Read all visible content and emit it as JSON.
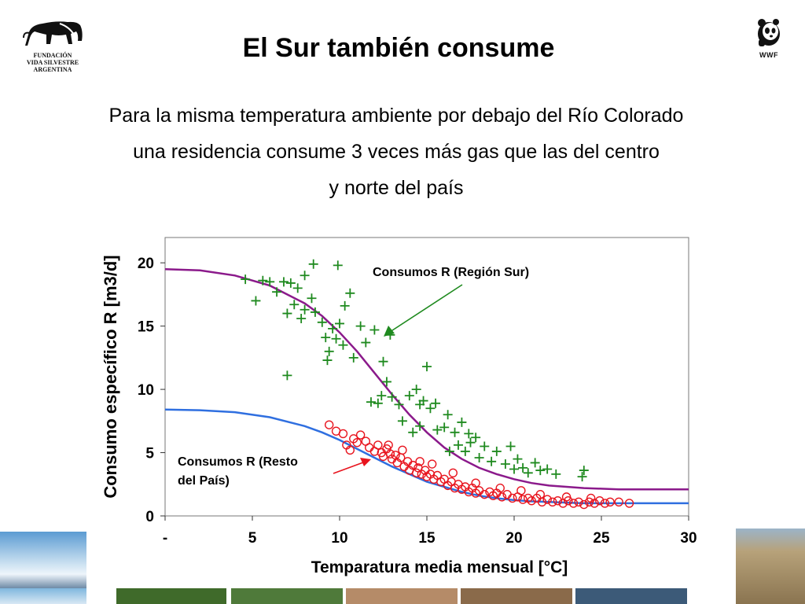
{
  "slide": {
    "title": "El Sur también consume",
    "subtitle_lines": [
      "Para la misma temperatura ambiente por debajo del Río Colorado",
      "una residencia consume 3 veces más gas que las del centro",
      "y norte del país"
    ]
  },
  "logos": {
    "fvsa_lines": [
      "FUNDACIÓN",
      "VIDA SILVESTRE",
      "ARGENTINA"
    ],
    "wwf_label": "WWF"
  },
  "colors": {
    "sur_points": "#1f8a1f",
    "resto_points": "#e8141e",
    "sur_curve": "#8b1a8b",
    "resto_curve": "#2f6fe0",
    "annotation_sur": "#1f8a1f",
    "annotation_resto": "#e8141e"
  },
  "chart_data": {
    "type": "scatter",
    "xlabel": "Temparatura media  mensual [°C]",
    "ylabel": "Consumo específico R  [m3/d]",
    "xlim": [
      0,
      30
    ],
    "ylim": [
      0,
      22
    ],
    "x_ticks": [
      {
        "value": 0,
        "label": "-"
      },
      {
        "value": 5,
        "label": "5"
      },
      {
        "value": 10,
        "label": "10"
      },
      {
        "value": 15,
        "label": "15"
      },
      {
        "value": 20,
        "label": "20"
      },
      {
        "value": 25,
        "label": "25"
      },
      {
        "value": 30,
        "label": "30"
      }
    ],
    "y_ticks": [
      {
        "value": 0,
        "label": "0"
      },
      {
        "value": 5,
        "label": "5"
      },
      {
        "value": 10,
        "label": "10"
      },
      {
        "value": 15,
        "label": "15"
      },
      {
        "value": 20,
        "label": "20"
      }
    ],
    "annotations": [
      {
        "text": "Consumos  R  (Región Sur)",
        "target": "sur"
      },
      {
        "text_lines": [
          "Consumos R  (Resto",
          "del País)"
        ],
        "target": "resto"
      }
    ],
    "series": [
      {
        "name": "Consumos  R  (Región Sur)",
        "marker": "plus",
        "points": [
          [
            4.6,
            18.7
          ],
          [
            5.2,
            17.0
          ],
          [
            5.6,
            18.6
          ],
          [
            6.0,
            18.5
          ],
          [
            6.4,
            17.7
          ],
          [
            6.8,
            18.5
          ],
          [
            7.0,
            16.0
          ],
          [
            7.2,
            18.4
          ],
          [
            7.4,
            16.7
          ],
          [
            7.6,
            18.0
          ],
          [
            7.8,
            15.6
          ],
          [
            8.0,
            16.3
          ],
          [
            8.4,
            17.2
          ],
          [
            8.5,
            19.9
          ],
          [
            8.0,
            19.0
          ],
          [
            8.6,
            16.1
          ],
          [
            9.0,
            15.3
          ],
          [
            9.2,
            14.1
          ],
          [
            9.4,
            13.0
          ],
          [
            9.6,
            14.8
          ],
          [
            9.8,
            14.0
          ],
          [
            9.9,
            19.8
          ],
          [
            10.0,
            15.2
          ],
          [
            10.2,
            13.5
          ],
          [
            10.3,
            16.6
          ],
          [
            10.6,
            17.6
          ],
          [
            10.8,
            12.5
          ],
          [
            11.2,
            15.0
          ],
          [
            11.5,
            13.7
          ],
          [
            7.0,
            11.1
          ],
          [
            9.3,
            12.3
          ],
          [
            12.0,
            14.7
          ],
          [
            12.5,
            12.2
          ],
          [
            12.9,
            14.3
          ],
          [
            12.7,
            10.6
          ],
          [
            11.8,
            9.0
          ],
          [
            12.2,
            8.9
          ],
          [
            12.4,
            9.5
          ],
          [
            13.0,
            9.4
          ],
          [
            13.4,
            8.8
          ],
          [
            13.6,
            7.5
          ],
          [
            14.0,
            9.5
          ],
          [
            14.4,
            10.0
          ],
          [
            14.6,
            8.8
          ],
          [
            14.8,
            9.1
          ],
          [
            15.0,
            11.8
          ],
          [
            15.2,
            8.5
          ],
          [
            15.5,
            8.9
          ],
          [
            14.2,
            6.6
          ],
          [
            14.6,
            7.1
          ],
          [
            15.6,
            6.8
          ],
          [
            16.0,
            7.0
          ],
          [
            16.3,
            5.1
          ],
          [
            16.6,
            6.6
          ],
          [
            16.8,
            5.6
          ],
          [
            17.2,
            5.1
          ],
          [
            17.4,
            6.5
          ],
          [
            17.8,
            6.2
          ],
          [
            18.0,
            4.6
          ],
          [
            18.3,
            5.5
          ],
          [
            18.7,
            4.3
          ],
          [
            19.0,
            5.1
          ],
          [
            19.5,
            4.1
          ],
          [
            19.8,
            5.5
          ],
          [
            20.0,
            3.7
          ],
          [
            20.2,
            4.5
          ],
          [
            20.5,
            3.8
          ],
          [
            20.8,
            3.4
          ],
          [
            21.2,
            4.2
          ],
          [
            21.5,
            3.6
          ],
          [
            21.9,
            3.7
          ],
          [
            22.4,
            3.3
          ],
          [
            23.9,
            3.1
          ],
          [
            24.0,
            3.6
          ],
          [
            16.2,
            8.0
          ],
          [
            17.0,
            7.4
          ],
          [
            17.5,
            5.8
          ]
        ]
      },
      {
        "name": "Consumos R  (Resto del País)",
        "marker": "circle",
        "points": [
          [
            9.4,
            7.2
          ],
          [
            9.8,
            6.7
          ],
          [
            10.2,
            6.5
          ],
          [
            10.4,
            5.6
          ],
          [
            10.6,
            5.2
          ],
          [
            10.8,
            6.1
          ],
          [
            11.0,
            5.8
          ],
          [
            11.2,
            6.4
          ],
          [
            11.5,
            5.9
          ],
          [
            11.7,
            5.4
          ],
          [
            12.0,
            5.1
          ],
          [
            12.2,
            5.6
          ],
          [
            12.4,
            5.0
          ],
          [
            12.5,
            4.7
          ],
          [
            12.7,
            5.3
          ],
          [
            12.9,
            4.9
          ],
          [
            13.0,
            4.5
          ],
          [
            13.2,
            4.8
          ],
          [
            13.3,
            4.2
          ],
          [
            13.5,
            4.6
          ],
          [
            13.7,
            3.9
          ],
          [
            13.9,
            4.3
          ],
          [
            14.0,
            3.6
          ],
          [
            14.2,
            4.0
          ],
          [
            14.4,
            3.4
          ],
          [
            14.5,
            3.8
          ],
          [
            14.7,
            3.3
          ],
          [
            14.9,
            3.6
          ],
          [
            15.0,
            3.1
          ],
          [
            15.2,
            3.3
          ],
          [
            15.4,
            2.9
          ],
          [
            15.6,
            3.2
          ],
          [
            15.8,
            2.7
          ],
          [
            16.0,
            2.9
          ],
          [
            16.2,
            2.4
          ],
          [
            16.4,
            2.7
          ],
          [
            16.6,
            2.2
          ],
          [
            16.8,
            2.5
          ],
          [
            17.0,
            2.1
          ],
          [
            17.2,
            2.3
          ],
          [
            17.4,
            1.9
          ],
          [
            17.6,
            2.2
          ],
          [
            17.8,
            1.8
          ],
          [
            18.0,
            2.0
          ],
          [
            18.3,
            1.7
          ],
          [
            18.6,
            1.9
          ],
          [
            18.8,
            1.6
          ],
          [
            19.0,
            1.8
          ],
          [
            19.3,
            1.5
          ],
          [
            19.6,
            1.7
          ],
          [
            19.9,
            1.4
          ],
          [
            20.2,
            1.5
          ],
          [
            20.5,
            1.3
          ],
          [
            20.8,
            1.4
          ],
          [
            21.0,
            1.2
          ],
          [
            21.3,
            1.4
          ],
          [
            21.6,
            1.1
          ],
          [
            21.9,
            1.3
          ],
          [
            22.2,
            1.1
          ],
          [
            22.5,
            1.2
          ],
          [
            22.8,
            1.0
          ],
          [
            23.1,
            1.2
          ],
          [
            23.4,
            1.0
          ],
          [
            23.7,
            1.1
          ],
          [
            24.0,
            0.9
          ],
          [
            24.3,
            1.1
          ],
          [
            24.6,
            1.0
          ],
          [
            24.9,
            1.2
          ],
          [
            25.2,
            1.0
          ],
          [
            25.5,
            1.1
          ],
          [
            26.0,
            1.1
          ],
          [
            26.6,
            1.0
          ],
          [
            12.8,
            5.6
          ],
          [
            13.6,
            5.2
          ],
          [
            14.6,
            4.3
          ],
          [
            15.3,
            4.1
          ],
          [
            16.5,
            3.4
          ],
          [
            17.8,
            2.6
          ],
          [
            19.2,
            2.2
          ],
          [
            20.4,
            2.0
          ],
          [
            21.5,
            1.7
          ],
          [
            23.0,
            1.5
          ],
          [
            24.4,
            1.4
          ]
        ]
      }
    ],
    "curves": [
      {
        "name": "fit-sur",
        "points": [
          [
            0,
            19.5
          ],
          [
            2,
            19.4
          ],
          [
            4,
            19.0
          ],
          [
            6,
            18.2
          ],
          [
            8,
            16.8
          ],
          [
            9,
            15.8
          ],
          [
            10,
            14.5
          ],
          [
            11,
            13.0
          ],
          [
            12,
            11.3
          ],
          [
            13,
            9.6
          ],
          [
            14,
            8.0
          ],
          [
            15,
            6.6
          ],
          [
            16,
            5.4
          ],
          [
            17,
            4.5
          ],
          [
            18,
            3.8
          ],
          [
            19,
            3.3
          ],
          [
            20,
            2.9
          ],
          [
            21,
            2.6
          ],
          [
            22,
            2.4
          ],
          [
            23,
            2.3
          ],
          [
            24,
            2.2
          ],
          [
            25,
            2.15
          ],
          [
            26,
            2.1
          ],
          [
            28,
            2.1
          ],
          [
            30,
            2.1
          ]
        ]
      },
      {
        "name": "fit-resto",
        "points": [
          [
            0,
            8.4
          ],
          [
            2,
            8.35
          ],
          [
            4,
            8.2
          ],
          [
            6,
            7.8
          ],
          [
            8,
            7.1
          ],
          [
            9,
            6.6
          ],
          [
            10,
            6.0
          ],
          [
            11,
            5.3
          ],
          [
            12,
            4.6
          ],
          [
            13,
            3.9
          ],
          [
            14,
            3.3
          ],
          [
            15,
            2.7
          ],
          [
            16,
            2.3
          ],
          [
            17,
            1.9
          ],
          [
            18,
            1.6
          ],
          [
            19,
            1.4
          ],
          [
            20,
            1.25
          ],
          [
            21,
            1.15
          ],
          [
            22,
            1.1
          ],
          [
            23,
            1.05
          ],
          [
            24,
            1.0
          ],
          [
            26,
            1.0
          ],
          [
            28,
            1.0
          ],
          [
            30,
            1.0
          ]
        ]
      }
    ]
  }
}
